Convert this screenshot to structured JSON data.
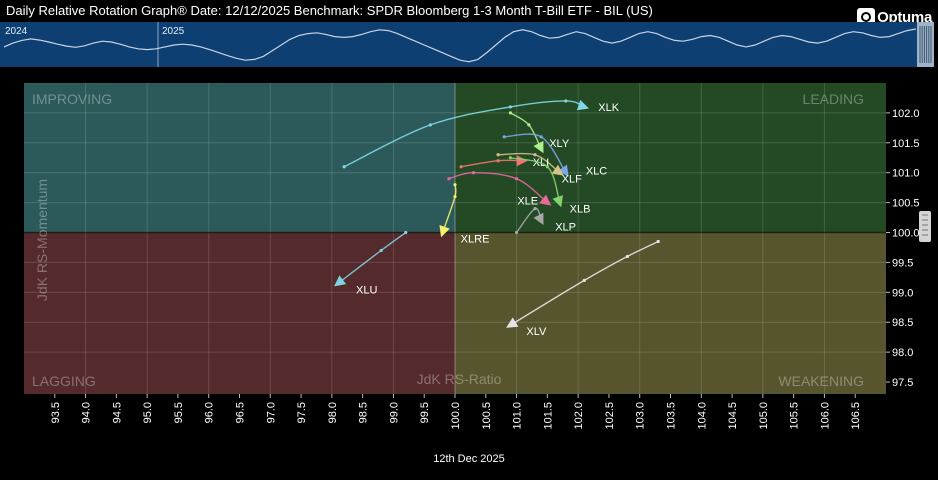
{
  "header": {
    "title": "Daily Relative Rotation Graph®     Date: 12/12/2025  Benchmark: SPDR Bloomberg 1-3 Month T-Bill ETF - BIL (US)",
    "logo_icon": "optuma-logo-icon",
    "logo_text": "Optuma"
  },
  "footer": {
    "date_label": "12th Dec 2025"
  },
  "colors": {
    "improving": "#2c5a5b",
    "leading": "#234a25",
    "lagging": "#552a2c",
    "weakening": "#57552d",
    "mini_bg": "#0d3f73",
    "mini_line": "#c6d4e4"
  },
  "chart_data": {
    "type": "scatter",
    "title": "Daily Relative Rotation Graph®",
    "benchmark": "SPDR Bloomberg 1-3 Month T-Bill ETF - BIL (US)",
    "xlabel": "JdK RS-Ratio",
    "ylabel": "JdK RS-Momentum",
    "xlim": [
      93.0,
      107.0
    ],
    "ylim": [
      97.3,
      102.5
    ],
    "x_ticks": [
      93.5,
      94.0,
      94.5,
      95.0,
      95.5,
      96.0,
      96.5,
      97.0,
      97.5,
      98.0,
      98.5,
      99.0,
      99.5,
      100.0,
      100.5,
      101.0,
      101.5,
      102.0,
      102.5,
      103.0,
      103.5,
      104.0,
      104.5,
      105.0,
      105.5,
      106.0,
      106.5
    ],
    "y_ticks": [
      97.5,
      98.0,
      98.5,
      99.0,
      99.5,
      100.0,
      100.5,
      101.0,
      101.5,
      102.0
    ],
    "quadrants": {
      "top_left": "IMPROVING",
      "top_right": "LEADING",
      "bottom_left": "LAGGING",
      "bottom_right": "WEAKENING"
    },
    "grid": true,
    "series": [
      {
        "name": "XLK",
        "color": "#7fd8e6",
        "x": [
          98.2,
          99.6,
          100.9,
          101.8,
          102.1
        ],
        "y": [
          101.1,
          101.8,
          102.1,
          102.2,
          102.1
        ]
      },
      {
        "name": "XLY",
        "color": "#aef08c",
        "x": [
          100.9,
          101.2,
          101.4
        ],
        "y": [
          102.0,
          101.8,
          101.4
        ]
      },
      {
        "name": "XLC",
        "color": "#7aa6e8",
        "x": [
          100.8,
          101.4,
          101.8
        ],
        "y": [
          101.6,
          101.6,
          101.0
        ]
      },
      {
        "name": "XLF",
        "color": "#d2c285",
        "x": [
          100.7,
          101.3,
          101.7
        ],
        "y": [
          101.3,
          101.3,
          101.0
        ]
      },
      {
        "name": "XLI",
        "color": "#f07474",
        "x": [
          100.1,
          100.7,
          101.1
        ],
        "y": [
          101.1,
          101.2,
          101.2
        ]
      },
      {
        "name": "XLB",
        "color": "#84d26b",
        "x": [
          100.9,
          101.5,
          101.7
        ],
        "y": [
          101.25,
          101.1,
          100.5
        ]
      },
      {
        "name": "XLE",
        "color": "#e7699e",
        "x": [
          99.9,
          100.3,
          101.0,
          101.5
        ],
        "y": [
          100.9,
          101.0,
          100.9,
          100.5
        ]
      },
      {
        "name": "XLP",
        "color": "#a8a8a8",
        "x": [
          101.0,
          101.3,
          101.4
        ],
        "y": [
          100.0,
          100.4,
          100.2
        ]
      },
      {
        "name": "XLRE",
        "color": "#f4f06e",
        "x": [
          100.0,
          100.0,
          99.8
        ],
        "y": [
          100.8,
          100.6,
          100.0
        ]
      },
      {
        "name": "XLU",
        "color": "#7fd3e1",
        "x": [
          99.2,
          98.8,
          98.1
        ],
        "y": [
          100.0,
          99.7,
          99.15
        ]
      },
      {
        "name": "XLV",
        "color": "#e4e4e4",
        "x": [
          103.3,
          102.8,
          102.1,
          100.9
        ],
        "y": [
          99.85,
          99.6,
          99.2,
          98.45
        ]
      }
    ]
  },
  "mini_chart": {
    "labels": [
      "2024",
      "2025"
    ],
    "values": [
      0.45,
      0.55,
      0.62,
      0.66,
      0.63,
      0.58,
      0.52,
      0.47,
      0.44,
      0.48,
      0.55,
      0.6,
      0.58,
      0.52,
      0.45,
      0.4,
      0.38,
      0.4,
      0.45,
      0.5,
      0.52,
      0.5,
      0.45,
      0.38,
      0.3,
      0.22,
      0.15,
      0.1,
      0.12,
      0.2,
      0.35,
      0.5,
      0.65,
      0.75,
      0.8,
      0.82,
      0.78,
      0.72,
      0.7,
      0.72,
      0.78,
      0.85,
      0.9,
      0.88,
      0.8,
      0.7,
      0.6,
      0.5,
      0.4,
      0.3,
      0.2,
      0.1,
      0.06,
      0.12,
      0.3,
      0.5,
      0.7,
      0.85,
      0.9,
      0.85,
      0.75,
      0.68,
      0.7,
      0.78,
      0.85,
      0.8,
      0.7,
      0.6,
      0.55,
      0.6,
      0.7,
      0.8,
      0.85,
      0.8,
      0.7,
      0.62,
      0.6,
      0.65,
      0.72,
      0.75,
      0.7,
      0.6,
      0.5,
      0.45,
      0.5,
      0.6,
      0.7,
      0.75,
      0.72,
      0.65,
      0.58,
      0.55,
      0.6,
      0.7,
      0.8,
      0.85,
      0.82,
      0.75,
      0.7,
      0.72,
      0.8,
      0.88,
      0.92
    ]
  }
}
